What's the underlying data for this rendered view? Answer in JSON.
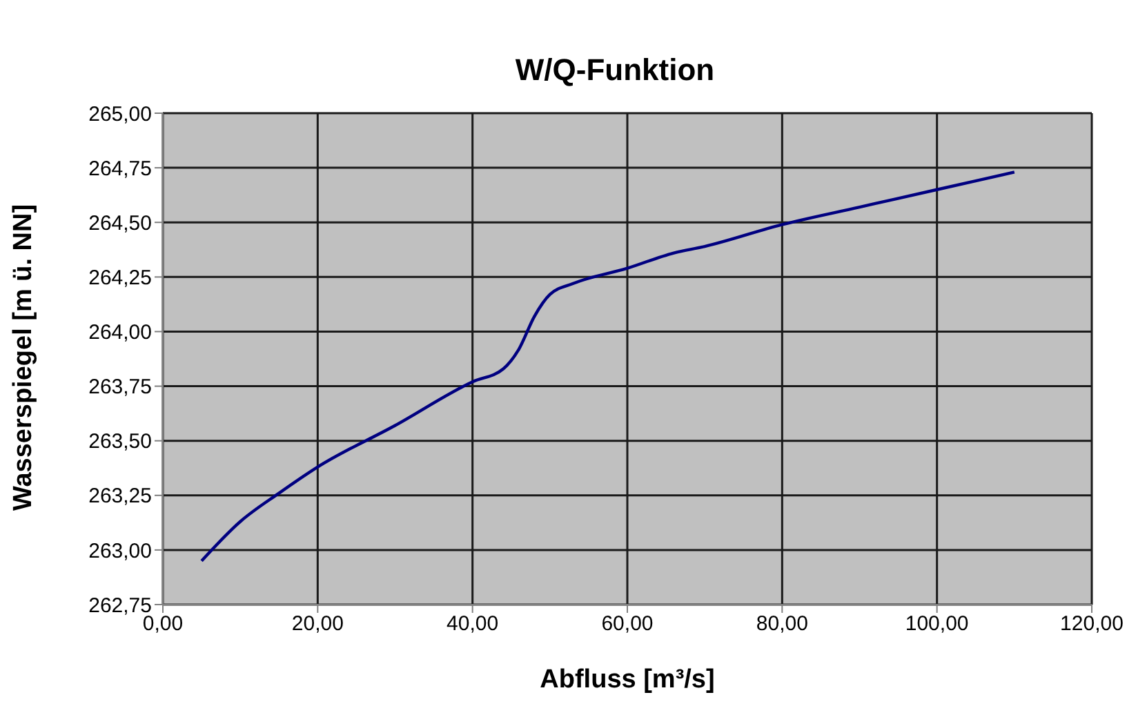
{
  "chart_data": {
    "type": "line",
    "title": "W/Q-Funktion",
    "xlabel": "Abfluss [m³/s]",
    "ylabel": "Wasserspiegel [m ü. NN]",
    "x": [
      5,
      10,
      15,
      20,
      30,
      40,
      44,
      46,
      48,
      50,
      53,
      60,
      66,
      70,
      80,
      90,
      100,
      110
    ],
    "series": [
      {
        "color": "#000080",
        "values": [
          262.95,
          263.13,
          263.26,
          263.38,
          263.57,
          263.77,
          263.83,
          263.92,
          264.07,
          264.17,
          264.22,
          264.29,
          264.36,
          264.39,
          264.49,
          264.57,
          264.65,
          264.73
        ]
      }
    ],
    "xlim": [
      0,
      120
    ],
    "xticks": [
      {
        "value": 0,
        "label": "0,00"
      },
      {
        "value": 20,
        "label": "20,00"
      },
      {
        "value": 40,
        "label": "40,00"
      },
      {
        "value": 60,
        "label": "60,00"
      },
      {
        "value": 80,
        "label": "80,00"
      },
      {
        "value": 100,
        "label": "100,00"
      },
      {
        "value": 120,
        "label": "120,00"
      }
    ],
    "ylim": [
      262.75,
      265
    ],
    "yticks": [
      {
        "value": 262.75,
        "label": "262,75"
      },
      {
        "value": 263,
        "label": "263,00"
      },
      {
        "value": 263.25,
        "label": "263,25"
      },
      {
        "value": 263.5,
        "label": "263,50"
      },
      {
        "value": 263.75,
        "label": "263,75"
      },
      {
        "value": 264,
        "label": "264,00"
      },
      {
        "value": 264.25,
        "label": "264,25"
      },
      {
        "value": 264.5,
        "label": "264,50"
      },
      {
        "value": 264.75,
        "label": "264,75"
      },
      {
        "value": 265,
        "label": "265,00"
      }
    ],
    "grid": true,
    "legend": false,
    "marker": "none",
    "line_style": "solid"
  }
}
